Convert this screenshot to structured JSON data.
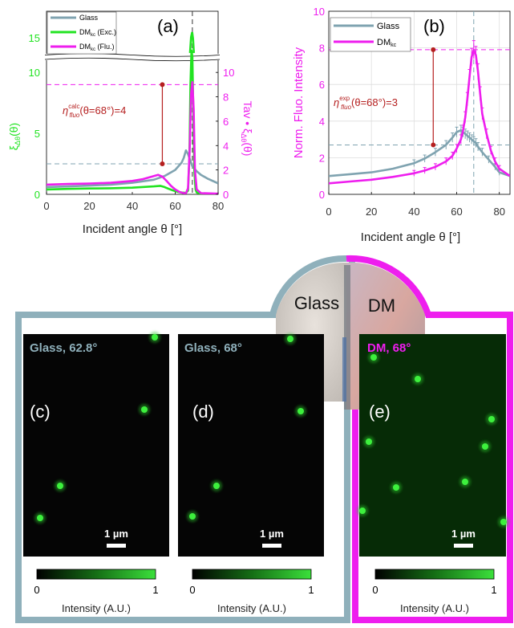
{
  "colors": {
    "glass": "#7fa3b0",
    "glass_frame": "#8fb0bb",
    "dm_exc": "#22e322",
    "dm_flu": "#ee1eee",
    "annotation": "#b51f1f",
    "dot": "#2cc32c"
  },
  "chart_data": [
    {
      "id": "a",
      "type": "line",
      "panel_label": "(a)",
      "xlabel": "Incident angle θ [°]",
      "ylabel_left": "ξΔθ(θ)",
      "ylabel_right": "Tav • ξΔθ(θ)",
      "xlim": [
        0,
        80
      ],
      "ylim_left_lower": [
        0,
        11
      ],
      "ylim_left_upper_ticks": [
        15
      ],
      "ylim_right": [
        0,
        11
      ],
      "xticks": [
        "0",
        "20",
        "40",
        "60",
        "80"
      ],
      "yticks_left": [
        "0",
        "5",
        "10",
        "15"
      ],
      "yticks_right": [
        "0",
        "2",
        "4",
        "6",
        "8",
        "10"
      ],
      "grid": false,
      "legend": [
        "Glass",
        "DMkc (Exc.)",
        "DMkc (Flu.)"
      ],
      "legend_placement": "top-left",
      "vline_x": 68,
      "hlines": [
        2.5,
        9.0
      ],
      "annotation": {
        "text": "ηcalcfluo(θ=68°)=4",
        "x": 54,
        "y_low": 2.5,
        "y_high": 9.0
      },
      "series": [
        {
          "name": "Glass",
          "x": [
            0,
            10,
            20,
            30,
            40,
            50,
            55,
            60,
            63,
            64,
            65,
            66,
            67,
            68,
            69,
            70,
            72,
            75,
            80
          ],
          "y": [
            0.6,
            0.65,
            0.72,
            0.8,
            0.95,
            1.2,
            1.5,
            2.0,
            2.6,
            3.0,
            3.6,
            3.3,
            2.8,
            2.3,
            2.1,
            1.9,
            1.6,
            1.3,
            0.9
          ]
        },
        {
          "name": "DMkc (Exc.)",
          "x": [
            0,
            10,
            20,
            30,
            40,
            50,
            53,
            55,
            57,
            59,
            61,
            63,
            65,
            66,
            66.6,
            67.1,
            67.6,
            68,
            68.4,
            68.9,
            69.5,
            70,
            72,
            80
          ],
          "y": [
            0.4,
            0.45,
            0.48,
            0.5,
            0.55,
            0.65,
            0.7,
            0.6,
            0.45,
            0.32,
            0.22,
            0.15,
            0.12,
            0.3,
            3,
            9,
            11.8,
            11.3,
            7,
            2,
            0.4,
            0.15,
            0.05,
            0.02
          ]
        },
        {
          "name": "DMkc (Flu.)",
          "x": [
            0,
            10,
            20,
            30,
            40,
            45,
            50,
            52,
            54,
            56,
            58,
            60,
            62,
            64,
            65,
            66,
            66.8,
            67.4,
            68,
            68.6,
            69.2,
            70,
            72,
            80
          ],
          "y": [
            0.8,
            0.85,
            0.88,
            0.95,
            1.1,
            1.25,
            1.5,
            1.6,
            1.45,
            1.1,
            0.7,
            0.4,
            0.2,
            0.1,
            0.1,
            0.5,
            4,
            8.3,
            9.2,
            7,
            2,
            0.4,
            0.1,
            0.05
          ]
        }
      ]
    },
    {
      "id": "b",
      "type": "line",
      "panel_label": "(b)",
      "xlabel": "Incident angle θ [°]",
      "ylabel": "Norm. Fluo. Intensity",
      "xlim": [
        0,
        85
      ],
      "ylim": [
        0,
        10
      ],
      "xticks": [
        "0",
        "20",
        "40",
        "60",
        "80"
      ],
      "yticks": [
        "0",
        "2",
        "4",
        "6",
        "8",
        "10"
      ],
      "grid": true,
      "legend": [
        "Glass",
        "DMkc"
      ],
      "legend_placement": "top-left",
      "vline_x": 68,
      "hlines": [
        2.7,
        7.9
      ],
      "annotation": {
        "text": "ηexpfluo(θ=68°)=3",
        "x": 49,
        "y_low": 2.7,
        "y_high": 7.9
      },
      "series": [
        {
          "name": "Glass",
          "x": [
            0,
            10,
            20,
            30,
            40,
            45,
            50,
            55,
            58,
            60,
            62,
            63,
            64,
            65,
            66,
            67,
            68,
            69,
            70,
            72,
            75,
            78,
            80,
            85
          ],
          "y": [
            1.0,
            1.1,
            1.2,
            1.4,
            1.7,
            1.95,
            2.3,
            2.7,
            3.1,
            3.4,
            3.5,
            3.4,
            3.3,
            3.2,
            3.1,
            3.0,
            2.9,
            2.8,
            2.6,
            2.3,
            1.9,
            1.5,
            1.2,
            1.0
          ]
        },
        {
          "name": "DMkc",
          "x": [
            0,
            10,
            20,
            30,
            40,
            45,
            50,
            55,
            58,
            60,
            62,
            63,
            64,
            65,
            66,
            67,
            68,
            69,
            70,
            71,
            72,
            74,
            76,
            78,
            80,
            85
          ],
          "y": [
            0.6,
            0.7,
            0.8,
            0.95,
            1.15,
            1.3,
            1.5,
            1.8,
            2.1,
            2.5,
            3.0,
            3.5,
            4.2,
            5.2,
            6.4,
            7.5,
            7.9,
            7.6,
            6.7,
            5.5,
            4.4,
            3.3,
            2.4,
            1.8,
            1.4,
            1.0
          ]
        }
      ]
    }
  ],
  "inset": {
    "left_label": "Glass",
    "right_label": "DM"
  },
  "images": [
    {
      "id": "c",
      "title": "Glass, 62.8°",
      "panel_label": "(c)",
      "scalebar": "1 µm",
      "cbar_min": "0",
      "cbar_max": "1",
      "cbar_label": "Intensity (A.U.)"
    },
    {
      "id": "d",
      "title": "Glass, 68°",
      "panel_label": "(d)",
      "scalebar": "1 µm",
      "cbar_min": "0",
      "cbar_max": "1",
      "cbar_label": "Intensity (A.U.)"
    },
    {
      "id": "e",
      "title": "DM, 68°",
      "panel_label": "(e)",
      "scalebar": "1 µm",
      "cbar_min": "0",
      "cbar_max": "1",
      "cbar_label": "Intensity (A.U.)"
    }
  ]
}
